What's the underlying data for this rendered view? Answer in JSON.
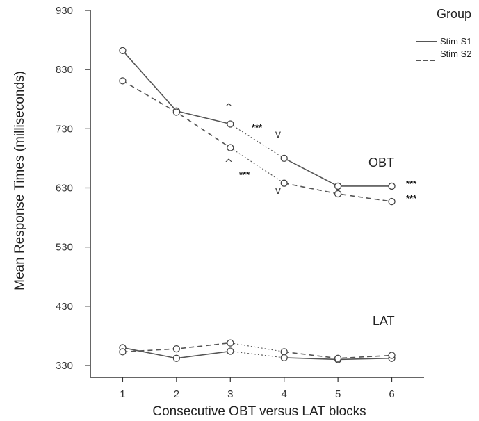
{
  "chart_data": {
    "type": "line",
    "xlabel": "Consecutive OBT versus LAT blocks",
    "ylabel": "Mean Response Times (milliseconds)",
    "x": [
      1,
      2,
      3,
      4,
      5,
      6
    ],
    "x_ticks": [
      "1",
      "2",
      "3",
      "4",
      "5",
      "6"
    ],
    "y_ticks": [
      "930",
      "830",
      "730",
      "630",
      "530",
      "430",
      "330"
    ],
    "xlim": [
      0.4,
      6.6
    ],
    "ylim": [
      310,
      930
    ],
    "legend": {
      "title": "Group",
      "placement": "top-right",
      "entries": [
        {
          "label": "Stim S1",
          "style": "solid"
        },
        {
          "label": "Stim S2",
          "style": "dashed"
        }
      ]
    },
    "groups": [
      {
        "label": "OBT",
        "series": [
          {
            "name": "Stim S1",
            "style": "solid",
            "values": [
              862,
              760,
              738,
              680,
              633,
              633
            ]
          },
          {
            "name": "Stim S2",
            "style": "dashed",
            "values": [
              811,
              758,
              698,
              638,
              620,
              607
            ]
          }
        ]
      },
      {
        "label": "LAT",
        "series": [
          {
            "name": "Stim S1",
            "style": "solid",
            "values": [
              360,
              342,
              354,
              343,
              340,
              342
            ]
          },
          {
            "name": "Stim S2",
            "style": "dashed",
            "values": [
              353,
              358,
              368,
              353,
              342,
              347
            ]
          }
        ]
      }
    ],
    "annotations": {
      "significance": "***",
      "caret_up": "^",
      "caret_down": "v"
    },
    "colors": {
      "stim_s1": "#555555",
      "stim_s2": "#555555",
      "axis": "#333333",
      "marker": "#444444"
    }
  }
}
